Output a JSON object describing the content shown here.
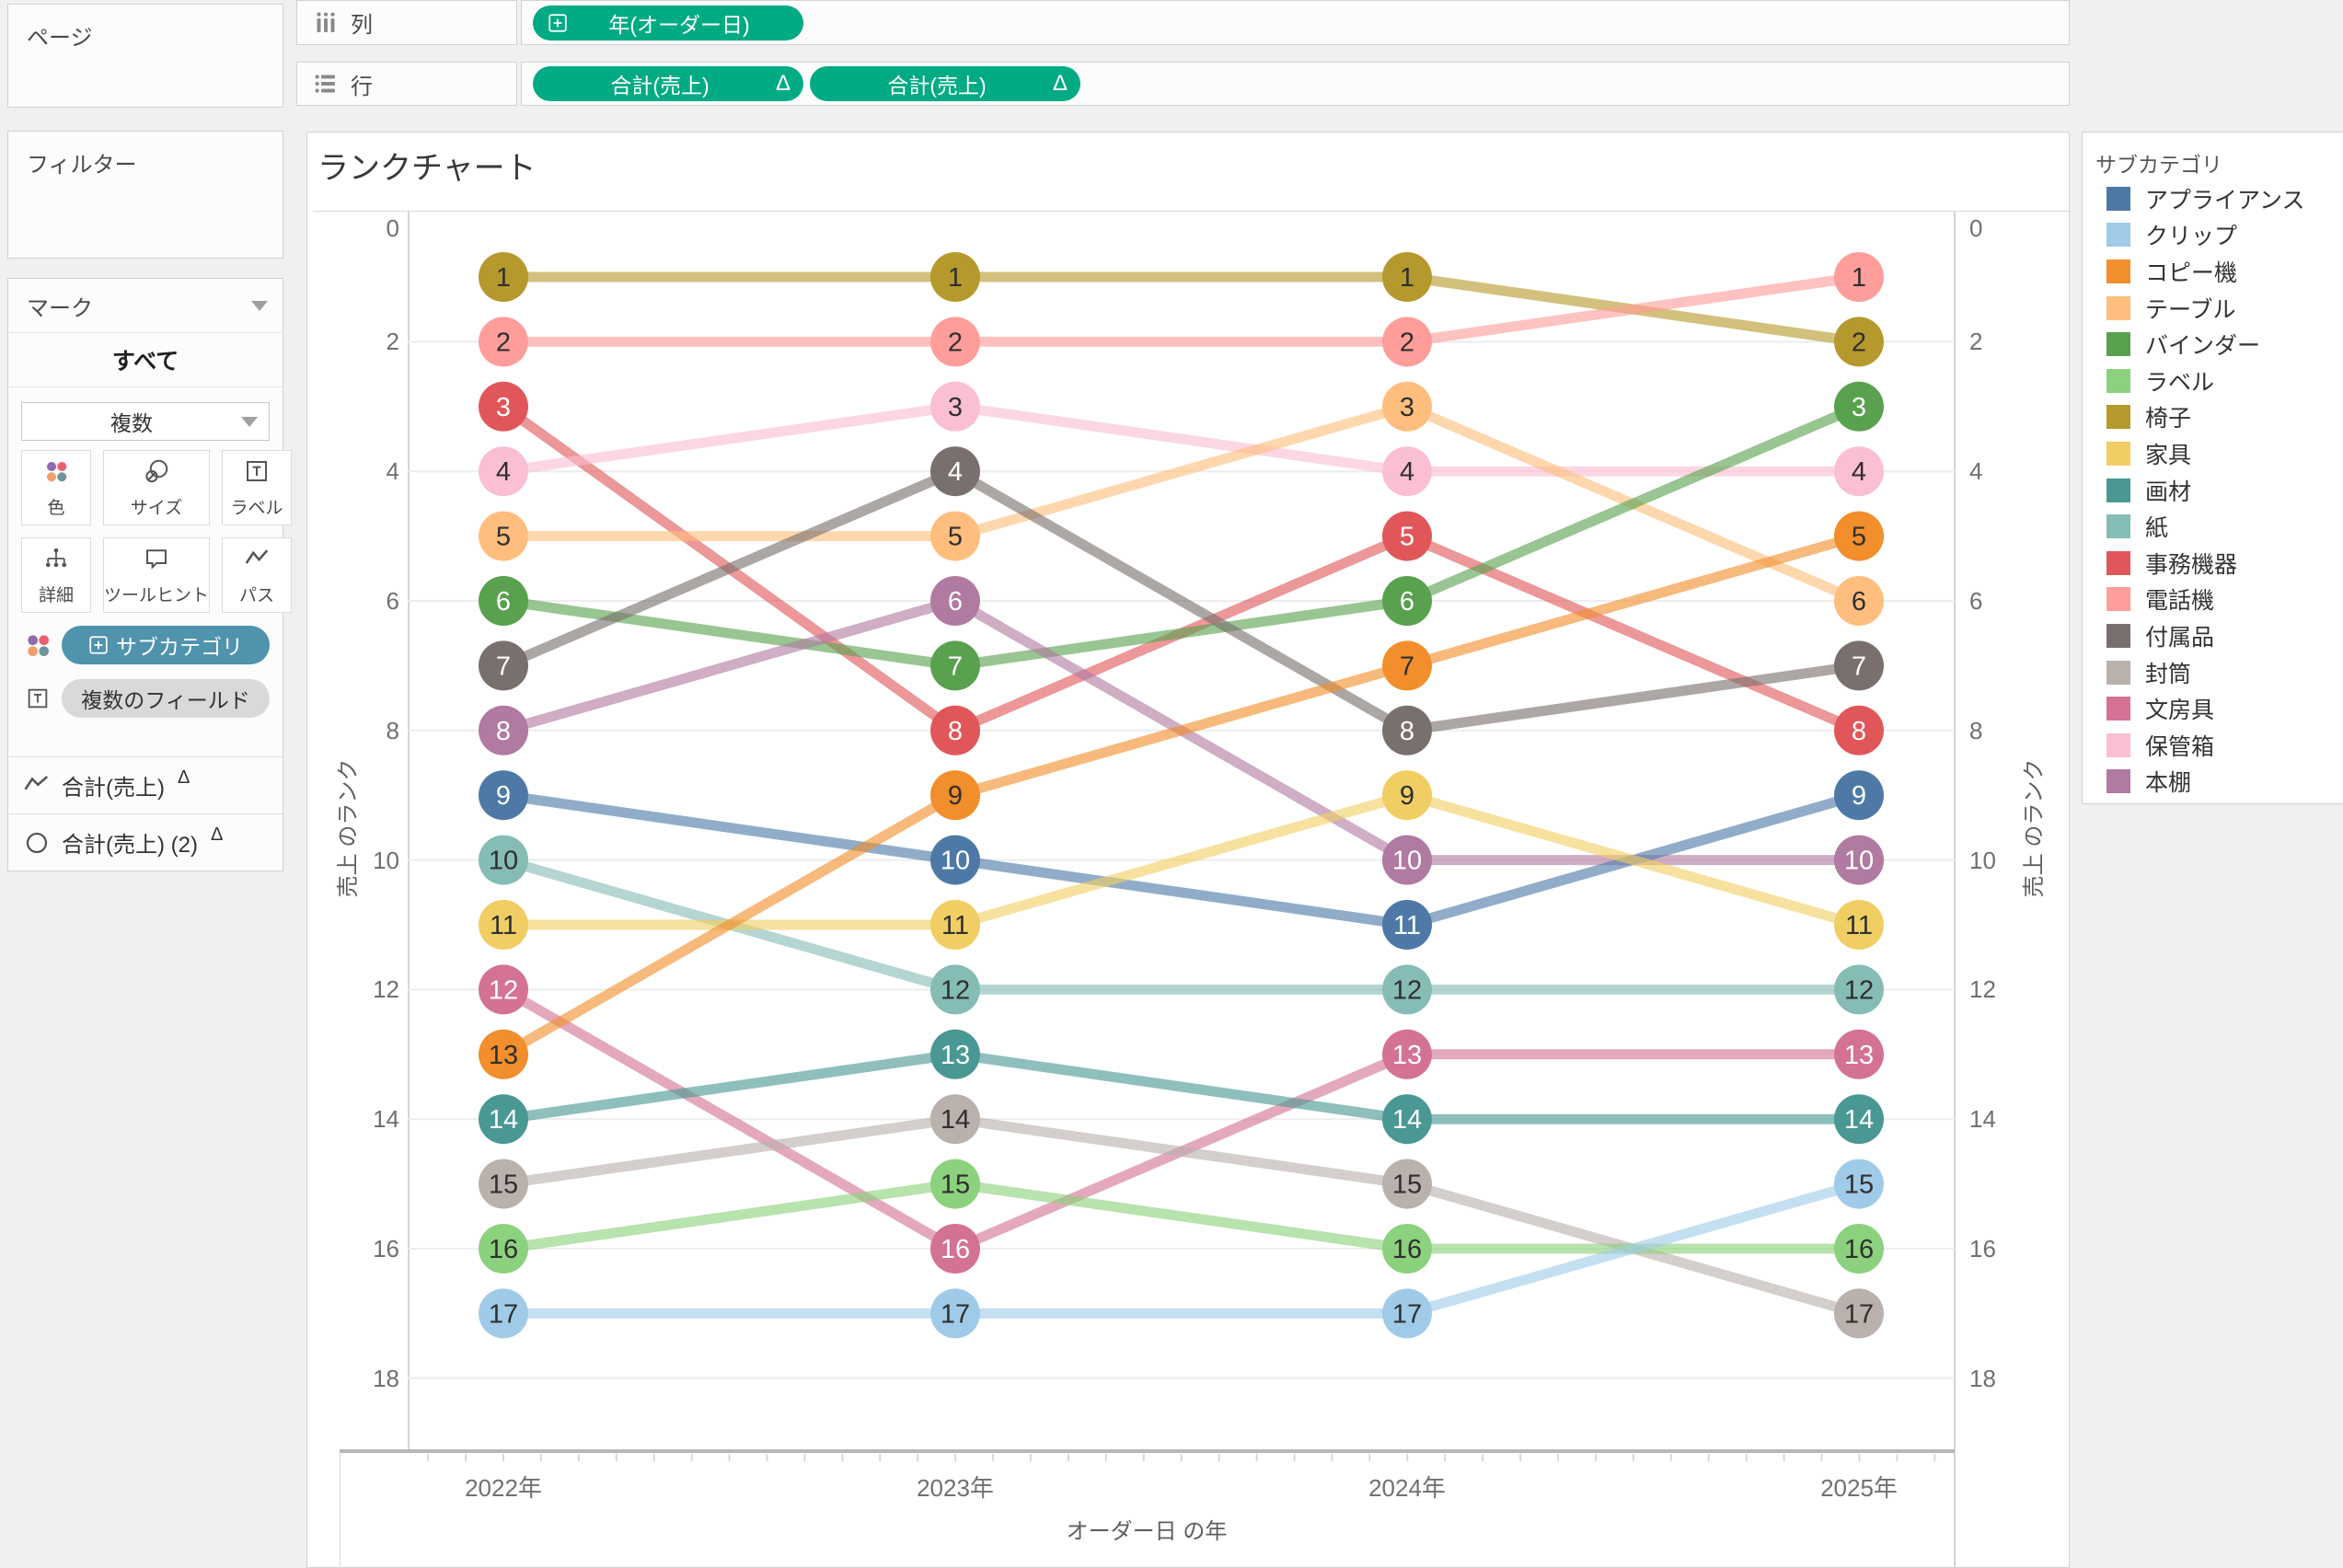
{
  "shelves": {
    "columns_label": "列",
    "rows_label": "行",
    "columns_pills": [
      {
        "label": "年(オーダー日)"
      }
    ],
    "rows_pills": [
      {
        "label": "合計(売上)",
        "badge": "Δ"
      },
      {
        "label": "合計(売上)",
        "badge": "Δ"
      }
    ],
    "pill_color": "#00AB84"
  },
  "panels": {
    "pages_title": "ページ",
    "filters_title": "フィルター",
    "marks": {
      "title": "マーク",
      "tab": "すべて",
      "type_dropdown": "複数",
      "buttons": [
        {
          "label": "色",
          "icon": "color-icon"
        },
        {
          "label": "サイズ",
          "icon": "size-icon"
        },
        {
          "label": "ラベル",
          "icon": "label-icon"
        },
        {
          "label": "詳細",
          "icon": "detail-icon"
        },
        {
          "label": "ツールヒント",
          "icon": "tooltip-icon"
        },
        {
          "label": "パス",
          "icon": "path-icon"
        }
      ],
      "color_pill": {
        "label": "サブカテゴリ",
        "color": "#4F93AD"
      },
      "text_pill": {
        "label": "複数のフィールド",
        "color": "#D9D9D9"
      },
      "cards": [
        {
          "label": "合計(売上)",
          "badge": "Δ",
          "icon": "line-mark-icon"
        },
        {
          "label": "合計(売上) (2)",
          "badge": "Δ",
          "icon": "circle-mark-icon"
        }
      ]
    }
  },
  "chart": {
    "title": "ランクチャート",
    "left_axis_title": "売上 のランク",
    "right_axis_title": "売上 のランク",
    "x_axis_title": "オーダー日 の年",
    "y_ticks": [
      0,
      2,
      4,
      6,
      8,
      10,
      12,
      14,
      16,
      18
    ],
    "x_labels": [
      "2022年",
      "2023年",
      "2024年",
      "2025年"
    ]
  },
  "legend": {
    "title": "サブカテゴリ",
    "items": [
      {
        "label": "アプライアンス",
        "color": "#4E79A7"
      },
      {
        "label": "クリップ",
        "color": "#A0CBE8"
      },
      {
        "label": "コピー機",
        "color": "#F28E2B"
      },
      {
        "label": "テーブル",
        "color": "#FFBE7D"
      },
      {
        "label": "バインダー",
        "color": "#59A14F"
      },
      {
        "label": "ラベル",
        "color": "#8CD17D"
      },
      {
        "label": "椅子",
        "color": "#B6992D"
      },
      {
        "label": "家具",
        "color": "#F1CE63"
      },
      {
        "label": "画材",
        "color": "#499894"
      },
      {
        "label": "紙",
        "color": "#86BCB6"
      },
      {
        "label": "事務機器",
        "color": "#E15759"
      },
      {
        "label": "電話機",
        "color": "#FF9D9A"
      },
      {
        "label": "付属品",
        "color": "#79706E"
      },
      {
        "label": "封筒",
        "color": "#BAB0AC"
      },
      {
        "label": "文房具",
        "color": "#D37295"
      },
      {
        "label": "保管箱",
        "color": "#FABFD2"
      },
      {
        "label": "本棚",
        "color": "#B07AA1"
      }
    ]
  },
  "chart_data": {
    "type": "line",
    "subtype": "bump-rank-chart",
    "title": "ランクチャート",
    "xlabel": "オーダー日 の年",
    "ylabel": "売上 のランク",
    "ylim": [
      0,
      18
    ],
    "y_inverted": true,
    "x": [
      "2022",
      "2023",
      "2024",
      "2025"
    ],
    "series": [
      {
        "name": "椅子",
        "color": "#B6992D",
        "text": "dark",
        "ranks": [
          1,
          1,
          1,
          2
        ]
      },
      {
        "name": "電話機",
        "color": "#FF9D9A",
        "text": "dark",
        "ranks": [
          2,
          2,
          2,
          1
        ]
      },
      {
        "name": "事務機器",
        "color": "#E15759",
        "text": "light",
        "ranks": [
          3,
          8,
          5,
          8
        ]
      },
      {
        "name": "保管箱",
        "color": "#FABFD2",
        "text": "dark",
        "ranks": [
          4,
          3,
          4,
          4
        ]
      },
      {
        "name": "テーブル",
        "color": "#FFBE7D",
        "text": "dark",
        "ranks": [
          5,
          5,
          3,
          6
        ]
      },
      {
        "name": "バインダー",
        "color": "#59A14F",
        "text": "light",
        "ranks": [
          6,
          7,
          6,
          3
        ]
      },
      {
        "name": "付属品",
        "color": "#79706E",
        "text": "light",
        "ranks": [
          7,
          4,
          8,
          7
        ]
      },
      {
        "name": "本棚",
        "color": "#B07AA1",
        "text": "light",
        "ranks": [
          8,
          6,
          10,
          10
        ]
      },
      {
        "name": "アプライアンス",
        "color": "#4E79A7",
        "text": "light",
        "ranks": [
          9,
          10,
          11,
          9
        ]
      },
      {
        "name": "紙",
        "color": "#86BCB6",
        "text": "dark",
        "ranks": [
          10,
          12,
          12,
          12
        ]
      },
      {
        "name": "家具",
        "color": "#F1CE63",
        "text": "dark",
        "ranks": [
          11,
          11,
          9,
          11
        ]
      },
      {
        "name": "文房具",
        "color": "#D37295",
        "text": "light",
        "ranks": [
          12,
          16,
          13,
          13
        ]
      },
      {
        "name": "コピー機",
        "color": "#F28E2B",
        "text": "dark",
        "ranks": [
          13,
          9,
          7,
          5
        ]
      },
      {
        "name": "画材",
        "color": "#499894",
        "text": "light",
        "ranks": [
          14,
          13,
          14,
          14
        ]
      },
      {
        "name": "封筒",
        "color": "#BAB0AC",
        "text": "dark",
        "ranks": [
          15,
          14,
          15,
          17
        ]
      },
      {
        "name": "ラベル",
        "color": "#8CD17D",
        "text": "dark",
        "ranks": [
          16,
          15,
          16,
          16
        ]
      },
      {
        "name": "クリップ",
        "color": "#A0CBE8",
        "text": "dark",
        "ranks": [
          17,
          17,
          17,
          15
        ]
      }
    ]
  }
}
